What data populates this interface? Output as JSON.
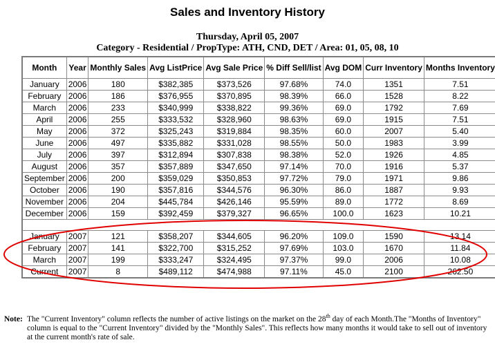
{
  "header": {
    "title": "Sales and Inventory History",
    "date": "Thursday, April 05, 2007",
    "category": "Category - Residential / PropType: ATH, CND, DET / Area: 01, 05, 08, 10"
  },
  "table": {
    "columns": [
      "Month",
      "Year",
      "Monthly Sales",
      "Avg ListPrice",
      "Avg Sale Price",
      "% Diff Sell/list",
      "Avg DOM",
      "Curr Inventory",
      "Months Inventory"
    ],
    "rows_2006": [
      [
        "January",
        "2006",
        "180",
        "$382,385",
        "$373,526",
        "97.68%",
        "74.0",
        "1351",
        "7.51"
      ],
      [
        "February",
        "2006",
        "186",
        "$376,955",
        "$370,895",
        "98.39%",
        "66.0",
        "1528",
        "8.22"
      ],
      [
        "March",
        "2006",
        "233",
        "$340,999",
        "$338,822",
        "99.36%",
        "69.0",
        "1792",
        "7.69"
      ],
      [
        "April",
        "2006",
        "255",
        "$333,532",
        "$328,960",
        "98.63%",
        "69.0",
        "1915",
        "7.51"
      ],
      [
        "May",
        "2006",
        "372",
        "$325,243",
        "$319,884",
        "98.35%",
        "60.0",
        "2007",
        "5.40"
      ],
      [
        "June",
        "2006",
        "497",
        "$335,882",
        "$331,028",
        "98.55%",
        "50.0",
        "1983",
        "3.99"
      ],
      [
        "July",
        "2006",
        "397",
        "$312,894",
        "$307,838",
        "98.38%",
        "52.0",
        "1926",
        "4.85"
      ],
      [
        "August",
        "2006",
        "357",
        "$357,889",
        "$347,650",
        "97.14%",
        "70.0",
        "1916",
        "5.37"
      ],
      [
        "September",
        "2006",
        "200",
        "$359,029",
        "$350,853",
        "97.72%",
        "79.0",
        "1971",
        "9.86"
      ],
      [
        "October",
        "2006",
        "190",
        "$357,816",
        "$344,576",
        "96.30%",
        "86.0",
        "1887",
        "9.93"
      ],
      [
        "November",
        "2006",
        "204",
        "$445,784",
        "$426,146",
        "95.59%",
        "89.0",
        "1772",
        "8.69"
      ],
      [
        "December",
        "2006",
        "159",
        "$392,459",
        "$379,327",
        "96.65%",
        "100.0",
        "1623",
        "10.21"
      ]
    ],
    "rows_2007": [
      [
        "January",
        "2007",
        "121",
        "$358,207",
        "$344,605",
        "96.20%",
        "109.0",
        "1590",
        "13.14"
      ],
      [
        "February",
        "2007",
        "141",
        "$322,700",
        "$315,252",
        "97.69%",
        "103.0",
        "1670",
        "11.84"
      ],
      [
        "March",
        "2007",
        "199",
        "$333,247",
        "$324,495",
        "97.37%",
        "99.0",
        "2006",
        "10.08"
      ],
      [
        "Current",
        "2007",
        "8",
        "$489,112",
        "$474,988",
        "97.11%",
        "45.0",
        "2100",
        "262.50"
      ]
    ]
  },
  "highlight": {
    "color": "#e00000"
  },
  "note": {
    "label": "Note:",
    "text_before_sup": "The \"Current Inventory\" column reflects the number of active listings on the market on the 28",
    "sup": "th",
    "text_after_sup": " day of each Month.The \"Months of Inventory\" column is equal to the \"Current Inventory\" divided by the \"Monthly Sales\". This reflects how many months it would take to sell out of inventory at the current month's rate of sale."
  }
}
